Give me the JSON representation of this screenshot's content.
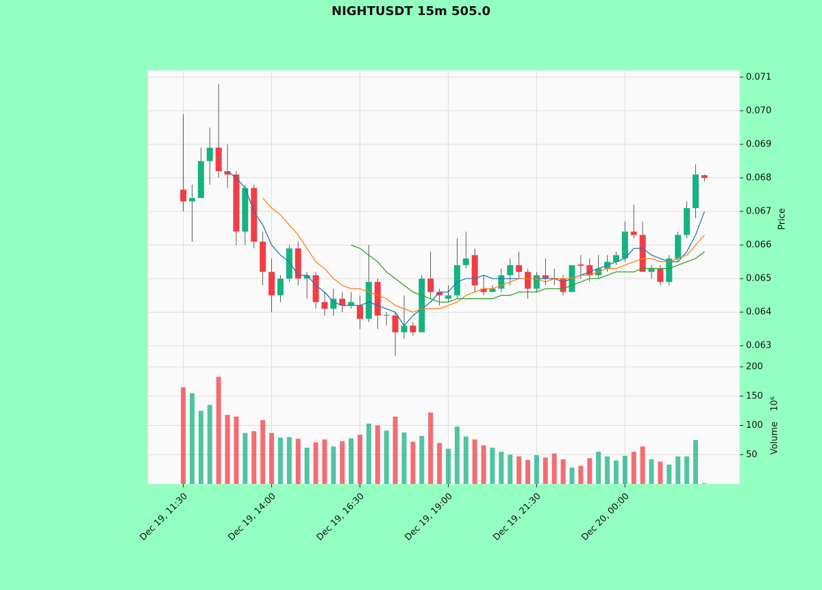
{
  "chart_data": {
    "type": "candlestick",
    "title": "NIGHTUSDT 15m 505.0",
    "categories": [
      "Dec 19, 11:30",
      null,
      null,
      null,
      null,
      null,
      null,
      null,
      null,
      null,
      "Dec 19, 14:00",
      null,
      null,
      null,
      null,
      null,
      null,
      null,
      null,
      null,
      "Dec 19, 16:30",
      null,
      null,
      null,
      null,
      null,
      null,
      null,
      null,
      null,
      "Dec 19, 19:00",
      null,
      null,
      null,
      null,
      null,
      null,
      null,
      null,
      null,
      "Dec 19, 21:30",
      null,
      null,
      null,
      null,
      null,
      null,
      null,
      null,
      null,
      "Dec 20, 00:00",
      null,
      null,
      null,
      null,
      null,
      null,
      null,
      null,
      null
    ],
    "open": [
      0.06765,
      0.0673,
      0.0674,
      0.0685,
      0.0689,
      0.0682,
      0.0681,
      0.0664,
      0.0677,
      0.0661,
      0.0652,
      0.0645,
      0.065,
      0.0659,
      0.065,
      0.0651,
      0.0643,
      0.0641,
      0.0644,
      0.0642,
      0.0642,
      0.0638,
      0.0649,
      0.0639,
      0.0639,
      0.0634,
      0.0636,
      0.0634,
      0.065,
      0.0646,
      0.0644,
      0.0645,
      0.0654,
      0.0657,
      0.0647,
      0.0646,
      0.0647,
      0.0651,
      0.0654,
      0.0652,
      0.0647,
      0.0651,
      0.06502,
      0.065,
      0.0646,
      0.06542,
      0.0654,
      0.0651,
      0.0653,
      0.0655,
      0.0656,
      0.0664,
      0.0663,
      0.0652,
      0.0653,
      0.0649,
      0.0656,
      0.0663,
      0.0671,
      0.06808
    ],
    "high": [
      0.0699,
      0.0678,
      0.0689,
      0.0695,
      0.0708,
      0.069,
      0.0682,
      0.0678,
      0.0678,
      0.0664,
      0.0656,
      0.0651,
      0.066,
      0.0661,
      0.0652,
      0.0652,
      0.0646,
      0.0647,
      0.0646,
      0.0646,
      0.0645,
      0.066,
      0.065,
      0.064,
      0.064,
      0.0645,
      0.0637,
      0.0651,
      0.0658,
      0.0647,
      0.0648,
      0.0662,
      0.0664,
      0.0659,
      0.0651,
      0.0648,
      0.0653,
      0.0656,
      0.0658,
      0.0653,
      0.0652,
      0.0656,
      0.0653,
      0.0651,
      0.0654,
      0.0657,
      0.0656,
      0.0657,
      0.0657,
      0.0658,
      0.0667,
      0.0672,
      0.0667,
      0.0654,
      0.0654,
      0.0657,
      0.0664,
      0.0673,
      0.0684,
      0.0681
    ],
    "low": [
      0.067,
      0.0661,
      0.0674,
      0.0678,
      0.068,
      0.0677,
      0.066,
      0.066,
      0.0659,
      0.0648,
      0.064,
      0.0643,
      0.0649,
      0.0648,
      0.0644,
      0.0641,
      0.0639,
      0.0639,
      0.064,
      0.0641,
      0.0635,
      0.0637,
      0.0635,
      0.0636,
      0.0627,
      0.0632,
      0.0633,
      0.0634,
      0.0644,
      0.0642,
      0.0643,
      0.0644,
      0.0653,
      0.0646,
      0.0645,
      0.0646,
      0.0646,
      0.0648,
      0.065,
      0.0644,
      0.0646,
      0.0648,
      0.0648,
      0.0645,
      0.0646,
      0.065,
      0.0649,
      0.065,
      0.0652,
      0.0654,
      0.0655,
      0.0662,
      0.0652,
      0.065,
      0.0648,
      0.0648,
      0.0655,
      0.0662,
      0.0668,
      0.0679
    ],
    "close": [
      0.0673,
      0.0674,
      0.0685,
      0.0689,
      0.0682,
      0.0681,
      0.0664,
      0.0677,
      0.0661,
      0.0652,
      0.0645,
      0.065,
      0.0659,
      0.065,
      0.0651,
      0.0643,
      0.0641,
      0.0644,
      0.0642,
      0.0643,
      0.0638,
      0.0649,
      0.0639,
      0.06392,
      0.0634,
      0.0636,
      0.0634,
      0.065,
      0.0646,
      0.0645,
      0.0645,
      0.0654,
      0.0656,
      0.0648,
      0.0646,
      0.0647,
      0.0651,
      0.0654,
      0.0652,
      0.0647,
      0.0651,
      0.065,
      0.06498,
      0.0646,
      0.0654,
      0.06538,
      0.0651,
      0.0653,
      0.0655,
      0.0657,
      0.0664,
      0.0663,
      0.0652,
      0.0653,
      0.0649,
      0.0656,
      0.0663,
      0.0671,
      0.0681,
      0.068
    ],
    "up_color": "#16b382",
    "down_color": "#f23d45",
    "ylabel": "Price",
    "ylim": [
      0.06237,
      0.0712
    ],
    "yticks": [
      0.063,
      0.064,
      0.065,
      0.066,
      0.067,
      0.068,
      0.069,
      {
        "value": 0.07,
        "label": "0.070"
      },
      0.071
    ],
    "grid": true,
    "moving_averages": [
      {
        "color": "#1f77b4",
        "values": [
          null,
          null,
          null,
          null,
          null,
          0.0682,
          0.068,
          0.0677,
          0.067,
          0.0666,
          0.066,
          0.0657,
          0.0655,
          0.0651,
          0.0651,
          0.0648,
          0.0646,
          0.0643,
          0.0642,
          0.0642,
          0.0642,
          0.0643,
          0.0642,
          0.0641,
          0.064,
          0.0636,
          0.0639,
          0.0641,
          0.0643,
          0.0646,
          0.0646,
          0.0649,
          0.065,
          0.065,
          0.0651,
          0.065,
          0.065,
          0.065,
          0.065,
          0.065,
          0.065,
          0.065,
          0.065,
          0.0649,
          0.065,
          0.0651,
          0.0652,
          0.0653,
          0.0654,
          0.0655,
          0.0656,
          0.0659,
          0.0659,
          0.0657,
          0.0656,
          0.0655,
          0.0655,
          0.0658,
          0.0663,
          0.067
        ]
      },
      {
        "color": "#ff7f0e",
        "values": [
          null,
          null,
          null,
          null,
          null,
          null,
          null,
          null,
          null,
          0.0674,
          0.0671,
          0.0669,
          0.0666,
          0.0663,
          0.0659,
          0.0655,
          0.0653,
          0.065,
          0.0648,
          0.0647,
          0.0647,
          0.0646,
          0.0645,
          0.0644,
          0.0642,
          0.0641,
          0.064,
          0.0641,
          0.0641,
          0.0641,
          0.0642,
          0.0643,
          0.0645,
          0.0646,
          0.0647,
          0.0647,
          0.0648,
          0.0649,
          0.065,
          0.065,
          0.065,
          0.0649,
          0.065,
          0.065,
          0.065,
          0.0651,
          0.0651,
          0.0652,
          0.0653,
          0.0653,
          0.0654,
          0.0655,
          0.0656,
          0.0656,
          0.0655,
          0.0655,
          0.0656,
          0.0657,
          0.066,
          0.0663
        ]
      },
      {
        "color": "#2ca02c",
        "values": [
          null,
          null,
          null,
          null,
          null,
          null,
          null,
          null,
          null,
          null,
          null,
          null,
          null,
          null,
          null,
          null,
          null,
          null,
          null,
          0.066,
          0.0659,
          0.0657,
          0.0655,
          0.0652,
          0.065,
          0.0648,
          0.0646,
          0.0645,
          0.0644,
          0.0643,
          0.0643,
          0.0644,
          0.0644,
          0.0644,
          0.0644,
          0.0644,
          0.0645,
          0.0645,
          0.0646,
          0.0646,
          0.0646,
          0.0647,
          0.0647,
          0.0647,
          0.0648,
          0.0649,
          0.065,
          0.065,
          0.0651,
          0.0652,
          0.0652,
          0.0652,
          0.0653,
          0.0653,
          0.0653,
          0.0653,
          0.0654,
          0.0655,
          0.0656,
          0.0658
        ]
      }
    ],
    "volume": {
      "ylabel": "Volume",
      "exponent": "10⁶",
      "values": [
        165,
        155,
        125,
        135,
        183,
        118,
        115,
        87,
        90,
        109,
        87,
        79,
        80,
        77,
        62,
        71,
        76,
        64,
        73,
        78,
        84,
        103,
        100,
        91,
        115,
        88,
        72,
        82,
        122,
        70,
        60,
        98,
        81,
        76,
        66,
        62,
        55,
        50,
        47,
        41,
        49,
        45,
        52,
        42,
        28,
        31,
        44,
        55,
        47,
        40,
        48,
        55,
        64,
        42,
        38,
        33,
        47,
        47,
        75,
        1
      ],
      "ylim": [
        0,
        200
      ],
      "yticks": [
        50,
        100,
        150,
        200
      ]
    }
  }
}
